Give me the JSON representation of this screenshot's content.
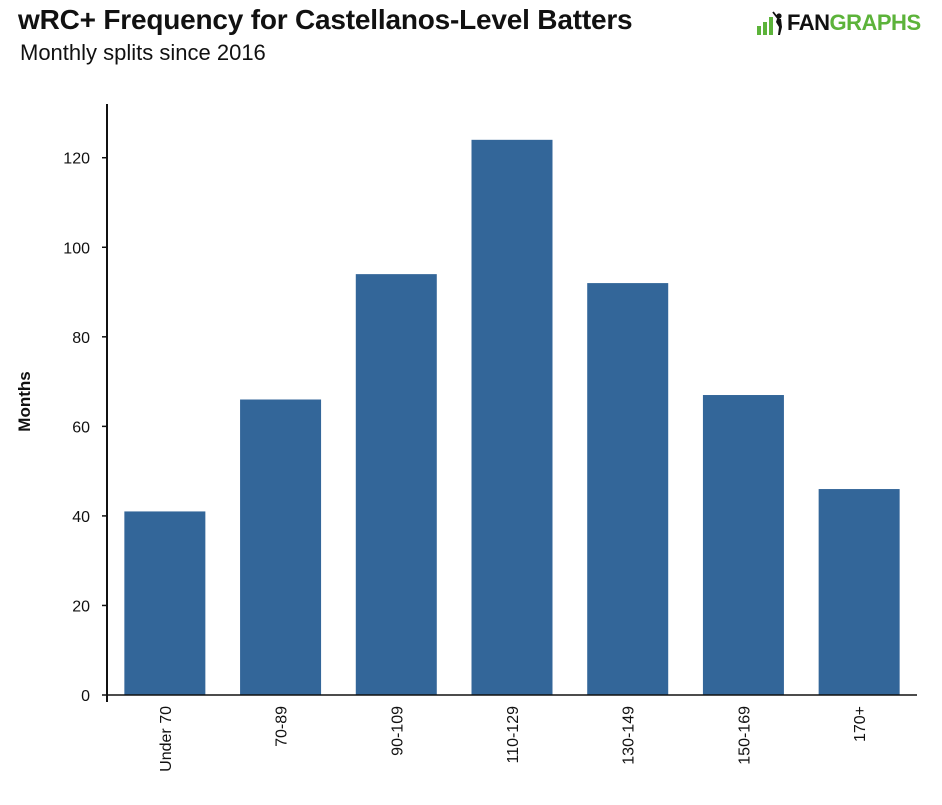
{
  "header": {
    "title": "wRC+ Frequency for Castellanos-Level Batters",
    "subtitle": "Monthly splits since 2016"
  },
  "logo": {
    "icon": "fangraphs-batter-icon",
    "text_dark": "FAN",
    "text_green": "GRAPHS",
    "color_green": "#5cb33a"
  },
  "chart_data": {
    "type": "bar",
    "categories": [
      "Under 70",
      "70-89",
      "90-109",
      "110-129",
      "130-149",
      "150-169",
      "170+"
    ],
    "values": [
      41,
      66,
      94,
      124,
      92,
      67,
      46
    ],
    "xlabel": "",
    "ylabel": "Months",
    "ylim": [
      0,
      132
    ],
    "yticks": [
      0,
      20,
      40,
      60,
      80,
      100,
      120
    ],
    "grid": false,
    "legend": "none",
    "bar_color": "#336699"
  }
}
